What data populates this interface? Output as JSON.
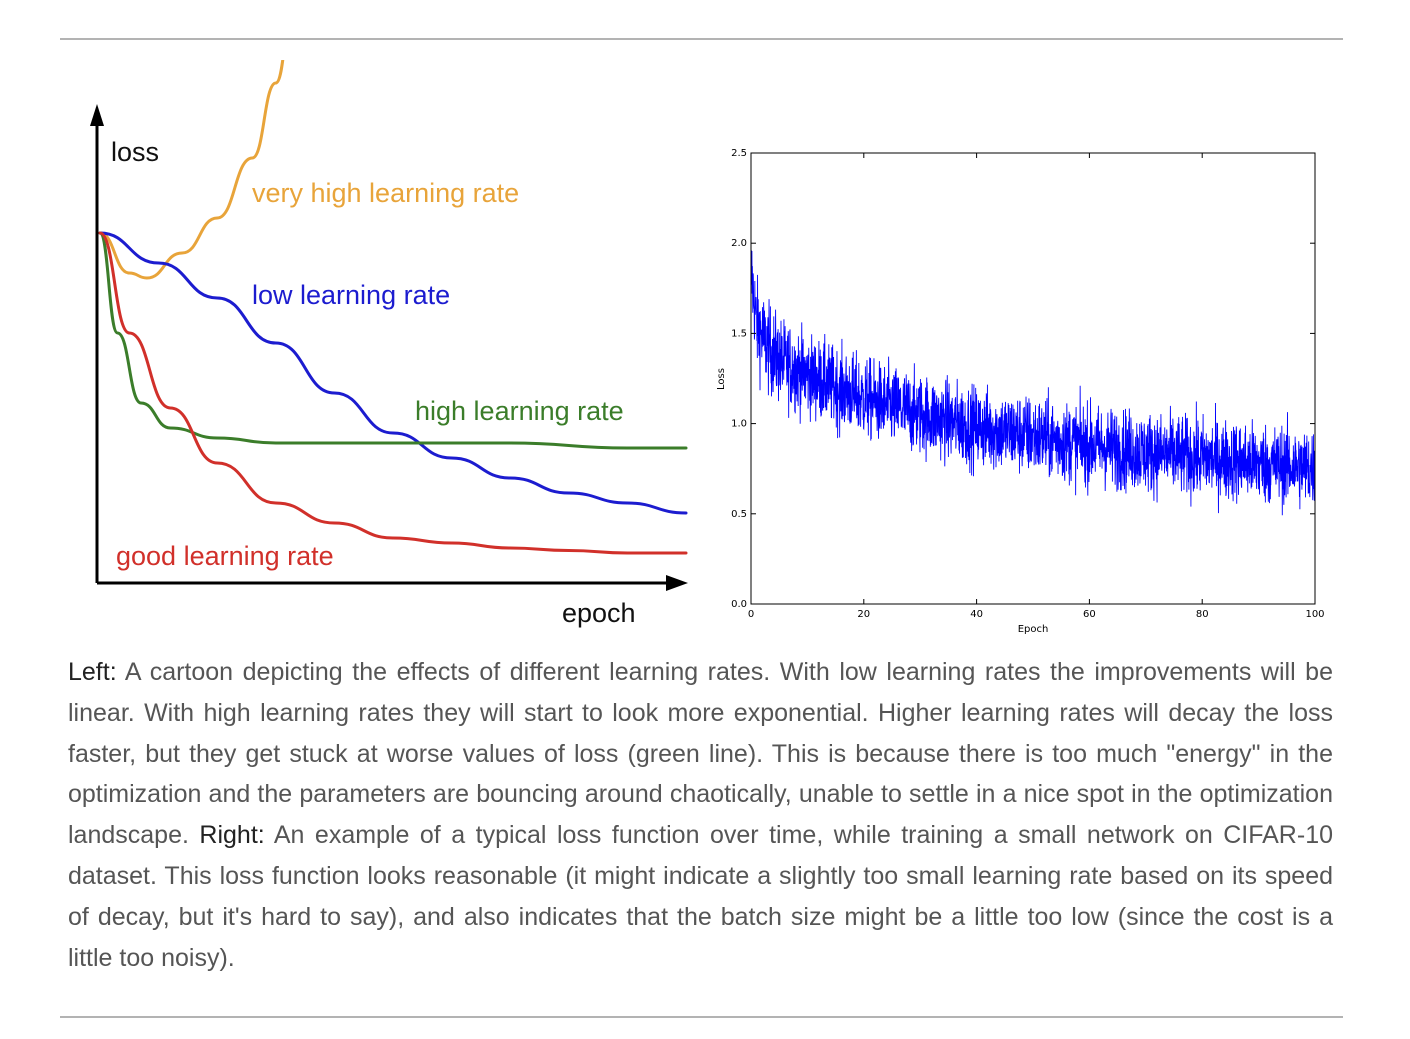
{
  "chart_data": [
    {
      "type": "line",
      "xlabel": "epoch",
      "ylabel": "loss",
      "grid": false,
      "series": [
        {
          "name": "very high learning rate",
          "color": "#e8a43a",
          "x": [
            0,
            0.5,
            0.8,
            1.4,
            2.0,
            2.6,
            3.0,
            3.3
          ],
          "y": [
            0.7,
            0.62,
            0.61,
            0.66,
            0.73,
            0.85,
            1.0,
            1.15
          ]
        },
        {
          "name": "low learning rate",
          "color": "#1c1ccf",
          "x": [
            0,
            1,
            2,
            3,
            4,
            5,
            6,
            7,
            8,
            9,
            10
          ],
          "y": [
            0.7,
            0.64,
            0.57,
            0.48,
            0.38,
            0.3,
            0.25,
            0.21,
            0.18,
            0.16,
            0.14
          ]
        },
        {
          "name": "high learning rate",
          "color": "#3b7d2a",
          "x": [
            0,
            0.3,
            0.7,
            1.2,
            2,
            3,
            5,
            7,
            9,
            10
          ],
          "y": [
            0.7,
            0.5,
            0.36,
            0.31,
            0.29,
            0.28,
            0.28,
            0.28,
            0.27,
            0.27
          ]
        },
        {
          "name": "good learning rate",
          "color": "#d1302a",
          "x": [
            0,
            0.5,
            1.2,
            2,
            3,
            4,
            5,
            6,
            7,
            8,
            9,
            10
          ],
          "y": [
            0.7,
            0.5,
            0.35,
            0.24,
            0.16,
            0.12,
            0.09,
            0.08,
            0.07,
            0.065,
            0.06,
            0.06
          ]
        }
      ]
    },
    {
      "type": "line",
      "xlabel": "Epoch",
      "ylabel": "Loss",
      "xlim": [
        0,
        100
      ],
      "ylim": [
        0.0,
        2.5
      ],
      "grid": false,
      "xticks": [
        "0",
        "20",
        "40",
        "60",
        "80",
        "100"
      ],
      "yticks": [
        "0.0",
        "0.5",
        "1.0",
        "1.5",
        "2.0",
        "2.5"
      ],
      "series": [
        {
          "name": "",
          "color": "#0000ff",
          "noise_amplitude": 0.11,
          "x": [
            0,
            1,
            3,
            5,
            10,
            15,
            20,
            30,
            40,
            50,
            60,
            70,
            80,
            90,
            100
          ],
          "y": [
            1.85,
            1.55,
            1.42,
            1.35,
            1.27,
            1.2,
            1.14,
            1.05,
            0.98,
            0.93,
            0.88,
            0.84,
            0.81,
            0.78,
            0.75
          ]
        }
      ]
    }
  ],
  "caption": {
    "left_label": "Left:",
    "left_text": " A cartoon depicting the effects of different learning rates. With low learning rates the improvements will be linear. With high learning rates they will start to look more exponential. Higher learning rates will decay the loss faster, but they get stuck at worse values of loss (green line). This is because there is too much \"energy\" in the optimization and the parameters are bouncing around chaotically, unable to settle in a nice spot in the optimization landscape. ",
    "right_label": "Right:",
    "right_text": " An example of a typical loss function over time, while training a small network on CIFAR-10 dataset. This loss function looks reasonable (it might indicate a slightly too small learning rate based on its speed of decay, but it's hard to say), and also indicates that the batch size might be a little too low (since the cost is a little too noisy)."
  }
}
